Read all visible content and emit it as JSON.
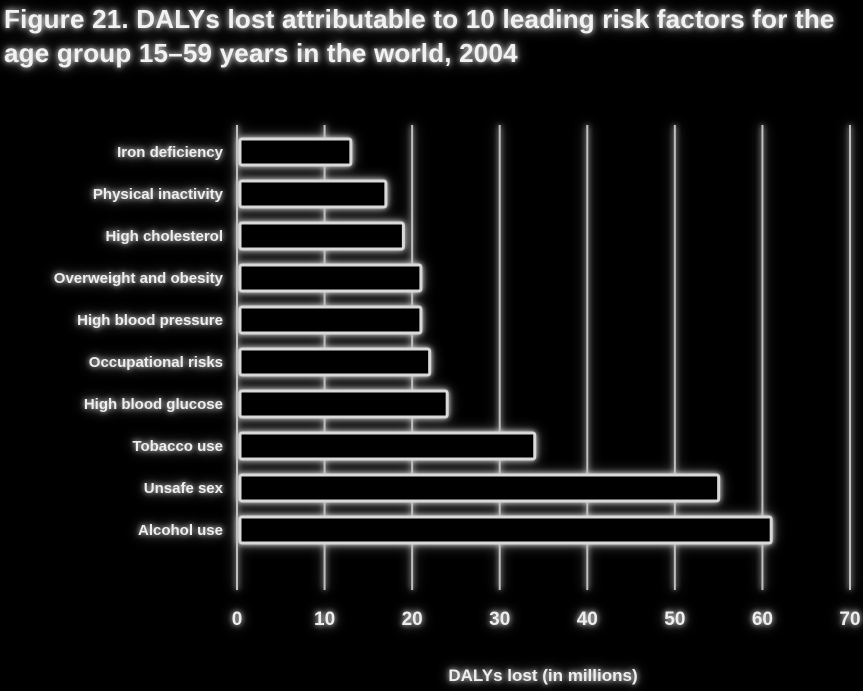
{
  "colors": {
    "background": "#000000",
    "bar_fill": "#000000",
    "bar_stroke": "#d9d9d9",
    "grid": "#bfbfbf",
    "text": "#eeeeee"
  },
  "chart_data": {
    "type": "bar",
    "orientation": "horizontal",
    "title": "Figure 21. DALYs lost attributable to 10 leading risk factors for the age group 15–59 years in the world, 2004",
    "xlabel": "DALYs lost (in millions)",
    "ylabel": "",
    "xlim": [
      0,
      70
    ],
    "xticks": [
      0,
      10,
      20,
      30,
      40,
      50,
      60,
      70
    ],
    "grid": true,
    "categories": [
      "Iron deficiency",
      "Physical inactivity",
      "High cholesterol",
      "Overweight and obesity",
      "High blood pressure",
      "Occupational risks",
      "High blood glucose",
      "Tobacco use",
      "Unsafe sex",
      "Alcohol use"
    ],
    "values": [
      13,
      17,
      19,
      21,
      21,
      22,
      24,
      34,
      55,
      61
    ]
  }
}
